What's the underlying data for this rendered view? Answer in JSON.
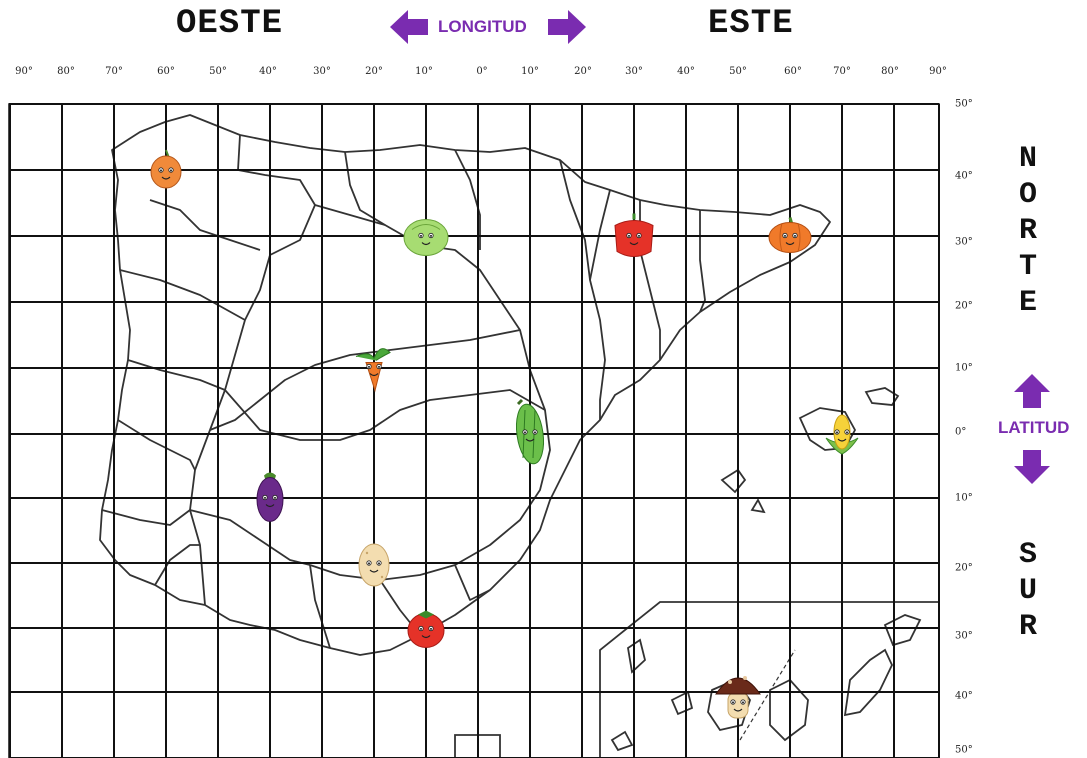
{
  "header": {
    "west": "OESTE",
    "east": "ESTE",
    "longitude": "LONGITUD",
    "latitude": "LATITUD"
  },
  "side": {
    "north_letters": [
      "N",
      "O",
      "R",
      "T",
      "E"
    ],
    "south_letters": [
      "S",
      "U",
      "R"
    ]
  },
  "x_ticks": [
    "90°",
    "80°",
    "70°",
    "60°",
    "50°",
    "40°",
    "30°",
    "20°",
    "10°",
    "0°",
    "10°",
    "20°",
    "30°",
    "40°",
    "50°",
    "60°",
    "70°",
    "80°",
    "90°"
  ],
  "y_ticks": [
    "50°",
    "40°",
    "30°",
    "20°",
    "10°",
    "0°",
    "10°",
    "20°",
    "30°",
    "40°",
    "50°"
  ],
  "colors": {
    "accent": "#7a2cb0",
    "grid": "#111111",
    "borders": "#333333"
  },
  "vegetables": [
    {
      "name": "onion",
      "icon": "onion-icon",
      "lon": -60,
      "lat": 40
    },
    {
      "name": "lettuce",
      "icon": "lettuce-icon",
      "lon": -10,
      "lat": 30
    },
    {
      "name": "red-pepper",
      "icon": "red-pepper-icon",
      "lon": 30,
      "lat": 30
    },
    {
      "name": "pumpkin",
      "icon": "pumpkin-icon",
      "lon": 60,
      "lat": 30
    },
    {
      "name": "carrot",
      "icon": "carrot-icon",
      "lon": -20,
      "lat": 10
    },
    {
      "name": "zucchini",
      "icon": "zucchini-icon",
      "lon": 10,
      "lat": 0
    },
    {
      "name": "corn",
      "icon": "corn-icon",
      "lon": 70,
      "lat": 0
    },
    {
      "name": "eggplant",
      "icon": "eggplant-icon",
      "lon": -40,
      "lat": -10
    },
    {
      "name": "potato",
      "icon": "potato-icon",
      "lon": -20,
      "lat": -20
    },
    {
      "name": "tomato",
      "icon": "tomato-icon",
      "lon": -10,
      "lat": -30
    },
    {
      "name": "mushroom",
      "icon": "mushroom-icon",
      "lon": 50,
      "lat": -40
    }
  ]
}
